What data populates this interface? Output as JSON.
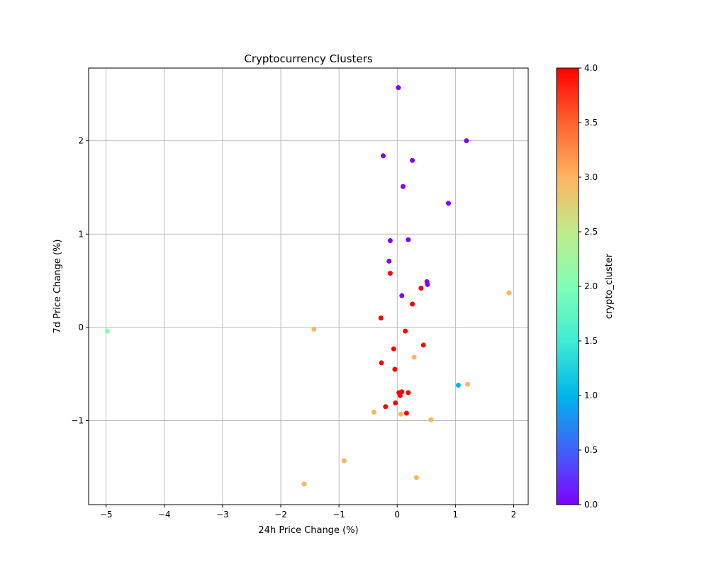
{
  "chart_data": {
    "type": "scatter",
    "title": "Cryptocurrency Clusters",
    "xlabel": "24h Price Change (%)",
    "ylabel": "7d Price Change (%)",
    "xlim": [
      -5.3,
      2.25
    ],
    "ylim": [
      -1.9,
      2.78
    ],
    "xticks": [
      -5,
      -4,
      -3,
      -2,
      -1,
      0,
      1,
      2
    ],
    "yticks": [
      -1,
      0,
      1,
      2
    ],
    "xtick_labels": [
      "−5",
      "−4",
      "−3",
      "−2",
      "−1",
      "0",
      "1",
      "2"
    ],
    "ytick_labels": [
      "−1",
      "0",
      "1",
      "2"
    ],
    "grid": true,
    "colorbar": {
      "label": "crypto_cluster",
      "colormap": "rainbow",
      "range": [
        0.0,
        4.0
      ],
      "ticks": [
        0.0,
        0.5,
        1.0,
        1.5,
        2.0,
        2.5,
        3.0,
        3.5,
        4.0
      ],
      "tick_labels": [
        "0.0",
        "0.5",
        "1.0",
        "1.5",
        "2.0",
        "2.5",
        "3.0",
        "3.5",
        "4.0"
      ]
    },
    "cluster_colors": {
      "0": "#8000ff",
      "1": "#00b5eb",
      "2": "#80ffb4",
      "3": "#ffb360",
      "4": "#ff0000"
    },
    "points": [
      {
        "x": 0.02,
        "y": 2.57,
        "cluster": 0
      },
      {
        "x": 1.19,
        "y": 2.0,
        "cluster": 0
      },
      {
        "x": -0.24,
        "y": 1.84,
        "cluster": 0
      },
      {
        "x": 0.26,
        "y": 1.79,
        "cluster": 0
      },
      {
        "x": 0.1,
        "y": 1.51,
        "cluster": 0
      },
      {
        "x": 0.88,
        "y": 1.33,
        "cluster": 0
      },
      {
        "x": -0.12,
        "y": 0.93,
        "cluster": 0
      },
      {
        "x": 0.19,
        "y": 0.94,
        "cluster": 0
      },
      {
        "x": -0.14,
        "y": 0.71,
        "cluster": 0
      },
      {
        "x": 0.51,
        "y": 0.49,
        "cluster": 0
      },
      {
        "x": 0.52,
        "y": 0.46,
        "cluster": 0
      },
      {
        "x": 0.08,
        "y": 0.34,
        "cluster": 0
      },
      {
        "x": 1.05,
        "y": -0.62,
        "cluster": 1
      },
      {
        "x": -4.98,
        "y": -0.04,
        "cluster": 2
      },
      {
        "x": -1.43,
        "y": -0.02,
        "cluster": 3
      },
      {
        "x": 1.92,
        "y": 0.37,
        "cluster": 3
      },
      {
        "x": 0.29,
        "y": -0.32,
        "cluster": 3
      },
      {
        "x": 1.21,
        "y": -0.61,
        "cluster": 3
      },
      {
        "x": -0.4,
        "y": -0.91,
        "cluster": 3
      },
      {
        "x": 0.06,
        "y": -0.93,
        "cluster": 3
      },
      {
        "x": 0.58,
        "y": -0.99,
        "cluster": 3
      },
      {
        "x": -0.91,
        "y": -1.43,
        "cluster": 3
      },
      {
        "x": 0.33,
        "y": -1.61,
        "cluster": 3
      },
      {
        "x": -1.6,
        "y": -1.68,
        "cluster": 3
      },
      {
        "x": -0.12,
        "y": 0.58,
        "cluster": 4
      },
      {
        "x": 0.41,
        "y": 0.42,
        "cluster": 4
      },
      {
        "x": 0.26,
        "y": 0.25,
        "cluster": 4
      },
      {
        "x": -0.28,
        "y": 0.1,
        "cluster": 4
      },
      {
        "x": 0.14,
        "y": -0.04,
        "cluster": 4
      },
      {
        "x": 0.45,
        "y": -0.19,
        "cluster": 4
      },
      {
        "x": -0.06,
        "y": -0.23,
        "cluster": 4
      },
      {
        "x": -0.27,
        "y": -0.38,
        "cluster": 4
      },
      {
        "x": -0.04,
        "y": -0.45,
        "cluster": 4
      },
      {
        "x": 0.03,
        "y": -0.7,
        "cluster": 4
      },
      {
        "x": 0.08,
        "y": -0.69,
        "cluster": 4
      },
      {
        "x": 0.19,
        "y": -0.7,
        "cluster": 4
      },
      {
        "x": 0.05,
        "y": -0.73,
        "cluster": 4
      },
      {
        "x": -0.03,
        "y": -0.81,
        "cluster": 4
      },
      {
        "x": -0.2,
        "y": -0.85,
        "cluster": 4
      },
      {
        "x": 0.16,
        "y": -0.92,
        "cluster": 4
      }
    ]
  }
}
